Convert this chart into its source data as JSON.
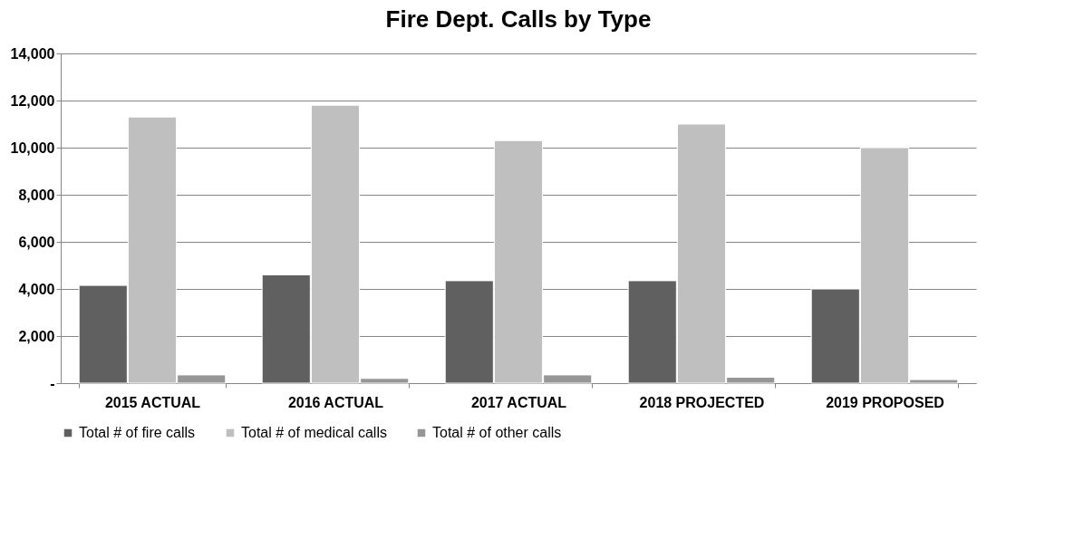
{
  "chart_data": {
    "type": "bar",
    "title": "Fire Dept. Calls by Type",
    "categories": [
      "2015 ACTUAL",
      "2016 ACTUAL",
      "2017 ACTUAL",
      "2018 PROJECTED",
      "2019 PROPOSED"
    ],
    "series": [
      {
        "name": "Total # of fire calls",
        "color": "#606060",
        "values": [
          4150,
          4600,
          4350,
          4350,
          4000
        ]
      },
      {
        "name": "Total # of medical calls",
        "color": "#bfbfbf",
        "values": [
          11300,
          11800,
          10300,
          11000,
          10000
        ]
      },
      {
        "name": "Total # of other calls",
        "color": "#969696",
        "values": [
          350,
          200,
          350,
          250,
          150
        ]
      }
    ],
    "ylim": [
      0,
      14000
    ],
    "yticks": [
      {
        "value": 0,
        "label": "-"
      },
      {
        "value": 2000,
        "label": "2,000"
      },
      {
        "value": 4000,
        "label": "4,000"
      },
      {
        "value": 6000,
        "label": "6,000"
      },
      {
        "value": 8000,
        "label": "8,000"
      },
      {
        "value": 10000,
        "label": "10,000"
      },
      {
        "value": 12000,
        "label": "12,000"
      },
      {
        "value": 14000,
        "label": "14,000"
      }
    ],
    "grid": "y",
    "legend": "bottom"
  }
}
